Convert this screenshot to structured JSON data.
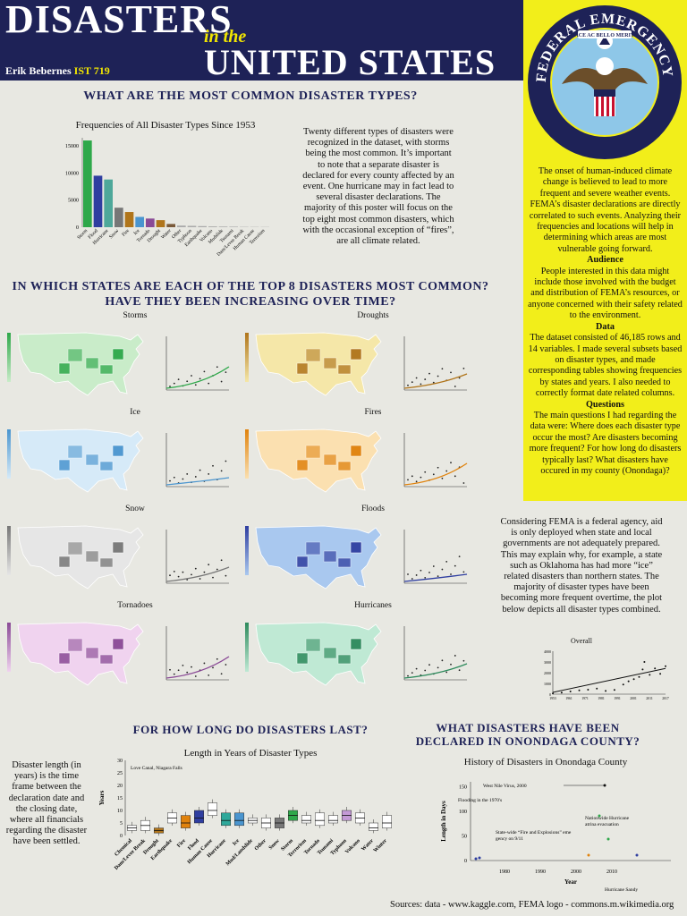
{
  "header": {
    "title_line1": "DISASTERS",
    "title_line2": "in the",
    "title_line3": "UNITED STATES",
    "author": "Erik Bebernes",
    "author_tag": "IST 719"
  },
  "seal": {
    "outer_text": "FEDERAL EMERGENCY MANAGEMENT AGENCY",
    "motto": "PACE AC BELLO MERITA"
  },
  "sidebar": {
    "intro": "The onset of human-induced climate change is believed to lead to more frequent and severe weather events. FEMA’s disaster declarations are directly correlated to such events. Analyzing their frequencies and locations will help in determining which areas are most vulnerable going forward.",
    "audience_h": "Audience",
    "audience": "People interested in this data might include those involved with the budget and distribution of FEMA’s resources, or anyone concerned with their safety related to the environment.",
    "data_h": "Data",
    "data": "The dataset consisted of 46,185 rows and 14 variables. I made several subsets based on disaster types, and made corresponding tables showing frequencies by states and years. I also needed to correctly format date related columns.",
    "questions_h": "Questions",
    "questions": "The main questions I had regarding the data were: Where does each disaster type occur the most? Are disasters becoming more frequent? For how long do disasters typically last? What disasters have occured in my county (Onondaga)?"
  },
  "section1": {
    "heading": "WHAT ARE THE MOST COMMON DISASTER TYPES?",
    "paragraph": "Twenty different types of disasters were recognized in the dataset, with storms being the most common. It’s important to note that a separate disaster is declared for every county affected by an event. One hurricane may in fact lead to several disaster declarations. The majority of this poster will focus on the top eight most common disasters, which with the occasional exception of “fires”, are all climate related."
  },
  "section2": {
    "heading": "IN WHICH STATES ARE EACH OF THE TOP 8 DISASTERS MOST COMMON? HAVE THEY BEEN INCREASING OVER TIME?",
    "panels": [
      {
        "label": "Storms",
        "color": "#2ea84a",
        "light": "#c9ecc9"
      },
      {
        "label": "Droughts",
        "color": "#b0751b",
        "light": "#f5e7a8"
      },
      {
        "label": "Ice",
        "color": "#4a95cf",
        "light": "#d6eaf8"
      },
      {
        "label": "Fires",
        "color": "#e0820c",
        "light": "#fbe0b0"
      },
      {
        "label": "Snow",
        "color": "#777777",
        "light": "#e6e6e6"
      },
      {
        "label": "Floods",
        "color": "#2f3ea0",
        "light": "#a9c8ef"
      },
      {
        "label": "Tornadoes",
        "color": "#8a4a96",
        "light": "#f0d3ef"
      },
      {
        "label": "Hurricanes",
        "color": "#2d8a5c",
        "light": "#bfe9d4"
      }
    ],
    "paragraph": "Considering FEMA is a federal agency, aid is only deployed when state and local governments are not adequately prepared. This may explain why, for example, a state such as Oklahoma has had more “ice” related disasters than northern states. The majority of disaster types have been becoming more frequent overtime, the plot below depicts all disaster types combined."
  },
  "section3": {
    "heading": "FOR HOW LONG DO DISASTERS LAST?",
    "paragraph": "Disaster length (in years) is the time frame between the declaration date and the closing date, where all financials regarding the disaster have been settled."
  },
  "section4": {
    "heading": "WHAT DISASTERS HAVE BEEN DECLARED IN ONONDAGA COUNTY?"
  },
  "sources": "Sources: data - www.kaggle.com, FEMA logo - commons.m.wikimedia.org",
  "chart_data": [
    {
      "type": "bar",
      "title": "Frequencies of All Disaster Types Since 1953",
      "categories": [
        "Storm",
        "Flood",
        "Hurricane",
        "Snow",
        "Fire",
        "Ice",
        "Tornado",
        "Drought",
        "Water",
        "Other",
        "Typhoon",
        "Earthquake",
        "Volcano",
        "Mudslide",
        "Tsunami",
        "Dam/Levee Break",
        "Human Cause",
        "Terrorism"
      ],
      "values": [
        16000,
        9500,
        8800,
        3600,
        2800,
        1900,
        1600,
        1300,
        600,
        300,
        250,
        200,
        150,
        120,
        100,
        60,
        50,
        40
      ],
      "colors": [
        "#2ea84a",
        "#2f3ea0",
        "#4ea89a",
        "#777777",
        "#b0751b",
        "#4a95cf",
        "#8a4a96",
        "#b0751b",
        "#7a5a3a",
        "#aaaaaa",
        "#aaaaaa",
        "#aaaaaa",
        "#aaaaaa",
        "#aaaaaa",
        "#aaaaaa",
        "#aaaaaa",
        "#aaaaaa",
        "#aaaaaa"
      ],
      "yticks": [
        0,
        5000,
        10000,
        15000
      ],
      "ylim": [
        0,
        16500
      ]
    },
    {
      "type": "scatter",
      "title": "Overall",
      "xticks": [
        "1953",
        "1961",
        "1971",
        "1981",
        "1991",
        "2001",
        "2011",
        "2017"
      ],
      "yticks": [
        0,
        1000,
        2000,
        3000,
        4000
      ],
      "ylim": [
        0,
        4000
      ],
      "x": [
        1953,
        1958,
        1963,
        1968,
        1973,
        1978,
        1983,
        1988,
        1993,
        1996,
        1999,
        2002,
        2004,
        2005,
        2008,
        2011,
        2014,
        2017
      ],
      "y": [
        60,
        150,
        250,
        350,
        420,
        520,
        300,
        400,
        900,
        1200,
        1400,
        1600,
        2300,
        3000,
        1800,
        2400,
        1900,
        2600
      ]
    },
    {
      "type": "box",
      "title": "Length in Years of Disaster Types",
      "ylabel": "Years",
      "yticks": [
        0,
        5,
        10,
        15,
        20,
        25,
        30
      ],
      "ylim": [
        0,
        30
      ],
      "annotation": "Love Canal, Niagara Falls",
      "categories": [
        "Chemical",
        "Dam/Levee Break",
        "Drought",
        "Earthquake",
        "Fire",
        "Flood",
        "Human Cause",
        "Hurricane",
        "Ice",
        "Mud/Landslide",
        "Other",
        "Snow",
        "Storm",
        "Terrorism",
        "Tornado",
        "Tsunami",
        "Typhoon",
        "Volcano",
        "Water",
        "Winter"
      ],
      "medians": [
        3,
        4,
        2,
        7,
        5,
        7,
        10,
        6,
        6,
        6,
        5,
        5,
        8,
        6,
        6,
        6,
        8,
        7,
        3,
        5
      ],
      "q1": [
        2,
        2,
        1,
        5,
        3,
        5,
        8,
        4,
        4,
        5,
        3,
        3,
        6,
        5,
        4,
        5,
        6,
        5,
        2,
        3
      ],
      "q3": [
        4,
        6,
        3,
        9,
        8,
        10,
        13,
        9,
        9,
        7,
        7,
        7,
        10,
        8,
        9,
        8,
        10,
        9,
        5,
        8
      ],
      "colors": [
        "#ffffff",
        "#ffffff",
        "#b0751b",
        "#ffffff",
        "#e0820c",
        "#2f3ea0",
        "#ffffff",
        "#2ea89a",
        "#4a95cf",
        "#ffffff",
        "#ffffff",
        "#777777",
        "#2ea84a",
        "#ffffff",
        "#ffffff",
        "#ffffff",
        "#c49ad6",
        "#ffffff",
        "#ffffff",
        "#ffffff"
      ]
    },
    {
      "type": "scatter",
      "title": "History of Disasters in Onondaga County",
      "xlabel": "Year",
      "ylabel": "Length in Days",
      "xticks": [
        "1980",
        "1990",
        "2000",
        "2010"
      ],
      "yticks": [
        0,
        50,
        100,
        150
      ],
      "ylim": [
        0,
        160
      ],
      "annotations": [
        "West Nile Virus, 2000",
        "Flooding in the 1970's",
        "Nationwide Hurricane Katrina evacuation",
        "State-wide “Fire and Explosions” emergency on 9/11",
        "Hurricane Sandy"
      ]
    }
  ]
}
